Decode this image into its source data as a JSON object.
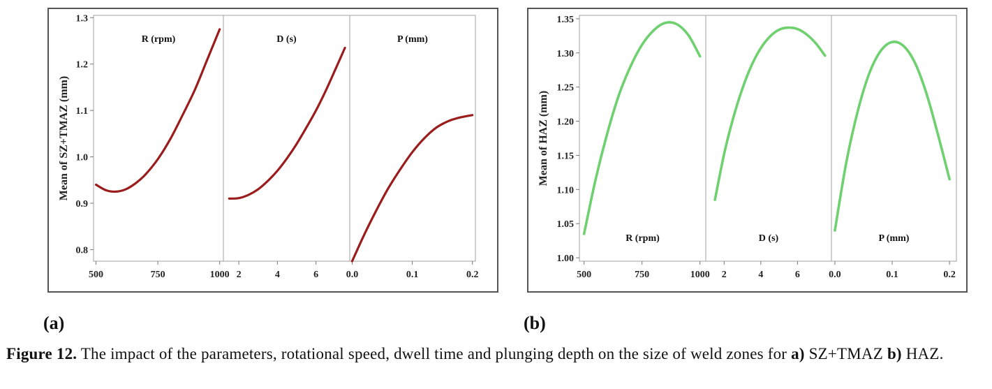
{
  "chart_data": [
    {
      "type": "line",
      "panel_label": "(a)",
      "ylabel": "Mean of SZ+TMAZ (mm)",
      "ylim": [
        0.775,
        1.305
      ],
      "yticks": [
        0.8,
        0.9,
        1.0,
        1.1,
        1.2,
        1.3
      ],
      "ytick_labels": [
        "0.8",
        "0.9",
        "1.0",
        "1.1",
        "1.2",
        "1.3"
      ],
      "line_color": "#9b1c1c",
      "grid": false,
      "subplots": [
        {
          "title": "R (rpm)",
          "title_position": "top",
          "xlim": [
            490,
            1015
          ],
          "xticks": [
            500,
            750,
            1000
          ],
          "xtick_labels": [
            "500",
            "750",
            "1000"
          ],
          "x": [
            500,
            540,
            580,
            620,
            660,
            700,
            750,
            800,
            850,
            900,
            950,
            1000
          ],
          "y": [
            0.94,
            0.928,
            0.925,
            0.93,
            0.943,
            0.962,
            0.995,
            1.038,
            1.09,
            1.145,
            1.21,
            1.275
          ]
        },
        {
          "title": "D (s)",
          "title_position": "top",
          "xlim": [
            1.2,
            7.75
          ],
          "xticks": [
            2,
            4,
            6
          ],
          "xtick_labels": [
            "2",
            "4",
            "6"
          ],
          "x": [
            1.5,
            2.0,
            2.5,
            3.0,
            3.5,
            4.0,
            4.5,
            5.0,
            5.5,
            6.0,
            6.5,
            7.0,
            7.5
          ],
          "y": [
            0.91,
            0.911,
            0.918,
            0.93,
            0.948,
            0.97,
            0.997,
            1.028,
            1.063,
            1.1,
            1.142,
            1.188,
            1.235
          ]
        },
        {
          "title": "P (mm)",
          "title_position": "top",
          "xlim": [
            -0.004,
            0.205
          ],
          "xticks": [
            0.0,
            0.1,
            0.2
          ],
          "xtick_labels": [
            "0.0",
            "0.1",
            "0.2"
          ],
          "x": [
            0.0,
            0.02,
            0.04,
            0.06,
            0.08,
            0.1,
            0.12,
            0.14,
            0.16,
            0.18,
            0.2
          ],
          "y": [
            0.775,
            0.832,
            0.884,
            0.932,
            0.973,
            1.01,
            1.04,
            1.063,
            1.077,
            1.085,
            1.09
          ]
        }
      ]
    },
    {
      "type": "line",
      "panel_label": "(b)",
      "ylabel": "Mean of HAZ (mm)",
      "ylim": [
        0.995,
        1.355
      ],
      "yticks": [
        1.0,
        1.05,
        1.1,
        1.15,
        1.2,
        1.25,
        1.3,
        1.35
      ],
      "ytick_labels": [
        "1.00",
        "1.05",
        "1.10",
        "1.15",
        "1.20",
        "1.25",
        "1.30",
        "1.35"
      ],
      "line_color": "#6fd06f",
      "grid": false,
      "subplots": [
        {
          "title": "R (rpm)",
          "title_position": "bottom",
          "xlim": [
            480,
            1025
          ],
          "xticks": [
            500,
            750,
            1000
          ],
          "xtick_labels": [
            "500",
            "750",
            "1000"
          ],
          "x": [
            500,
            550,
            600,
            650,
            700,
            750,
            800,
            850,
            900,
            950,
            1000
          ],
          "y": [
            1.035,
            1.115,
            1.182,
            1.238,
            1.28,
            1.312,
            1.333,
            1.344,
            1.342,
            1.326,
            1.295
          ]
        },
        {
          "title": "D (s)",
          "title_position": "bottom",
          "xlim": [
            1.0,
            7.85
          ],
          "xticks": [
            2,
            4,
            6
          ],
          "xtick_labels": [
            "2",
            "4",
            "6"
          ],
          "x": [
            1.5,
            2.0,
            2.5,
            3.0,
            3.5,
            4.0,
            4.5,
            5.0,
            5.5,
            6.0,
            6.5,
            7.0,
            7.5
          ],
          "y": [
            1.085,
            1.152,
            1.205,
            1.248,
            1.282,
            1.307,
            1.324,
            1.334,
            1.337,
            1.335,
            1.327,
            1.314,
            1.296
          ]
        },
        {
          "title": "P (mm)",
          "title_position": "bottom",
          "xlim": [
            -0.006,
            0.212
          ],
          "xticks": [
            0.0,
            0.1,
            0.2
          ],
          "xtick_labels": [
            "0.0",
            "0.1",
            "0.2"
          ],
          "x": [
            0.0,
            0.02,
            0.04,
            0.06,
            0.08,
            0.1,
            0.12,
            0.14,
            0.16,
            0.18,
            0.2
          ],
          "y": [
            1.04,
            1.14,
            1.215,
            1.27,
            1.303,
            1.316,
            1.31,
            1.285,
            1.24,
            1.18,
            1.115
          ]
        }
      ]
    }
  ],
  "caption": {
    "prefix": "Figure 12.",
    "text": " The impact of the parameters, rotational speed, dwell time and plunging depth on the size of weld zones for ",
    "part_a_letter": "a)",
    "part_a_text": " SZ+TMAZ ",
    "part_b_letter": "b)",
    "part_b_text": " HAZ."
  }
}
